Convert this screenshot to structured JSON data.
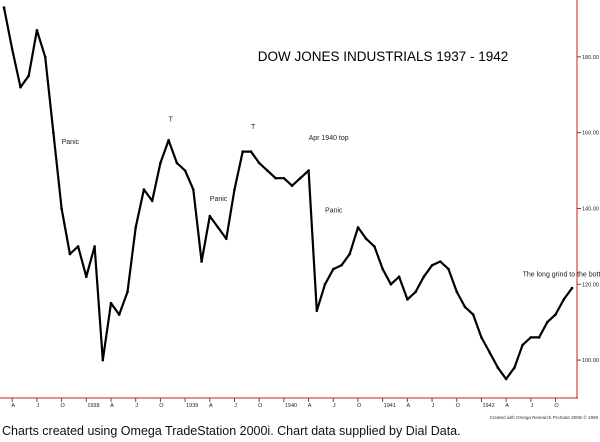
{
  "caption": "Charts created using Omega TradeStation 2000i. Chart data supplied by Dial Data.",
  "chart_data": {
    "type": "line",
    "title": "DOW JONES INDUSTRIALS 1937 - 1942",
    "xlabel": "",
    "ylabel": "",
    "ylim": [
      90,
      195
    ],
    "y_ticks": [
      "100.00",
      "120.00",
      "140.00",
      "160.00",
      "180.00"
    ],
    "x_ticks": [
      "A",
      "J",
      "O",
      "1938",
      "A",
      "J",
      "O",
      "1939",
      "A",
      "J",
      "O",
      "1940",
      "A",
      "J",
      "O",
      "1941",
      "A",
      "J",
      "O",
      "1942",
      "A",
      "J",
      "O"
    ],
    "grid": false,
    "annotations": [
      {
        "text": "Panic",
        "x": "1937-10",
        "y": 157
      },
      {
        "text": "T",
        "x": "1938-11",
        "y": 163
      },
      {
        "text": "Panic",
        "x": "1939-04",
        "y": 142
      },
      {
        "text": "T",
        "x": "1939-09",
        "y": 161
      },
      {
        "text": "Apr 1940 top",
        "x": "1940-04",
        "y": 158
      },
      {
        "text": "Panic",
        "x": "1940-06",
        "y": 139
      },
      {
        "text": "The long grind to the bottom",
        "x": "1942-06",
        "y": 122
      }
    ],
    "footer_note": "Created with Omega Research ProSuite 2000i © 1998",
    "series": [
      {
        "color": "#000000",
        "x": [
          "1937-03",
          "1937-04",
          "1937-05",
          "1937-06",
          "1937-07",
          "1937-08",
          "1937-09",
          "1937-10",
          "1937-11",
          "1937-12",
          "1938-01",
          "1938-02",
          "1938-03",
          "1938-04",
          "1938-05",
          "1938-06",
          "1938-07",
          "1938-08",
          "1938-09",
          "1938-10",
          "1938-11",
          "1938-12",
          "1939-01",
          "1939-02",
          "1939-03",
          "1939-04",
          "1939-05",
          "1939-06",
          "1939-07",
          "1939-08",
          "1939-09",
          "1939-10",
          "1939-11",
          "1939-12",
          "1940-01",
          "1940-02",
          "1940-03",
          "1940-04",
          "1940-05",
          "1940-06",
          "1940-07",
          "1940-08",
          "1940-09",
          "1940-10",
          "1940-11",
          "1940-12",
          "1941-01",
          "1941-02",
          "1941-03",
          "1941-04",
          "1941-05",
          "1941-06",
          "1941-07",
          "1941-08",
          "1941-09",
          "1941-10",
          "1941-11",
          "1941-12",
          "1942-01",
          "1942-02",
          "1942-03",
          "1942-04",
          "1942-05",
          "1942-06",
          "1942-07",
          "1942-08",
          "1942-09",
          "1942-10",
          "1942-11",
          "1942-12"
        ],
        "values": [
          193,
          182,
          172,
          175,
          187,
          180,
          160,
          140,
          128,
          130,
          122,
          130,
          100,
          115,
          112,
          118,
          135,
          145,
          142,
          152,
          158,
          152,
          150,
          145,
          126,
          138,
          135,
          132,
          145,
          155,
          155,
          152,
          150,
          148,
          148,
          146,
          148,
          150,
          113,
          120,
          124,
          125,
          128,
          135,
          132,
          130,
          124,
          120,
          122,
          116,
          118,
          122,
          125,
          126,
          124,
          118,
          114,
          112,
          106,
          102,
          98,
          95,
          98,
          104,
          106,
          106,
          110,
          112,
          116,
          119
        ]
      }
    ]
  }
}
